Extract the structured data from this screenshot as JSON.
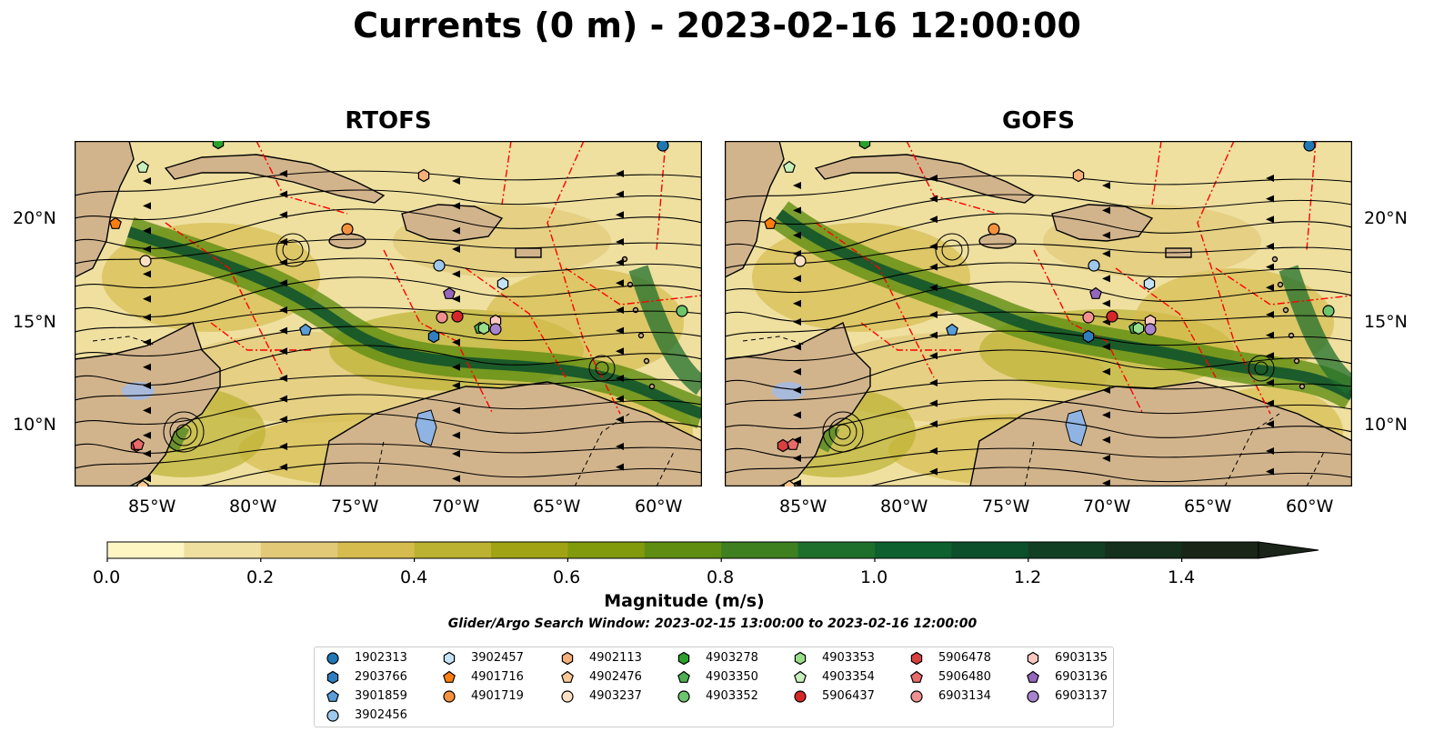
{
  "title": "Currents (0 m) - 2023-02-16 12:00:00",
  "panels": [
    {
      "title": "RTOFS"
    },
    {
      "title": "GOFS"
    }
  ],
  "axes": {
    "lon_ticks": [
      "85°W",
      "80°W",
      "75°W",
      "70°W",
      "65°W",
      "60°W"
    ],
    "lat_ticks": [
      "20°N",
      "15°N",
      "10°N"
    ]
  },
  "colorbar": {
    "label": "Magnitude (m/s)",
    "ticks": [
      "0.0",
      "0.2",
      "0.4",
      "0.6",
      "0.8",
      "1.0",
      "1.2",
      "1.4"
    ],
    "colors": [
      "#fdf6c3",
      "#efe0a0",
      "#e1c978",
      "#d6bc4e",
      "#bcb232",
      "#a0a414",
      "#819a0c",
      "#5f8d12",
      "#3e7f20",
      "#1f6f2c",
      "#0e602e",
      "#0b4f2b",
      "#113f24",
      "#15301d",
      "#182517",
      "#1a2418"
    ]
  },
  "search_window": "Glider/Argo Search Window: 2023-02-15 13:00:00 to 2023-02-16 12:00:00",
  "legend": {
    "columns": [
      [
        {
          "id": "1902313",
          "color": "#1f77b4",
          "shape": "circle"
        },
        {
          "id": "2903766",
          "color": "#2f7fc0",
          "shape": "hexagon"
        },
        {
          "id": "3901859",
          "color": "#5a9ed8",
          "shape": "pentagon"
        },
        {
          "id": "3902456",
          "color": "#9ec8ec",
          "shape": "circle"
        }
      ],
      [
        {
          "id": "3902457",
          "color": "#c6e2f7",
          "shape": "hexagon"
        },
        {
          "id": "4901716",
          "color": "#ff7f0e",
          "shape": "pentagon"
        },
        {
          "id": "4901719",
          "color": "#f5923e",
          "shape": "circle"
        }
      ],
      [
        {
          "id": "4902113",
          "color": "#f7b07a",
          "shape": "hexagon"
        },
        {
          "id": "4902476",
          "color": "#fcc894",
          "shape": "pentagon"
        },
        {
          "id": "4903237",
          "color": "#fde0c4",
          "shape": "circle"
        }
      ],
      [
        {
          "id": "4903278",
          "color": "#2ca02c",
          "shape": "hexagon"
        },
        {
          "id": "4903350",
          "color": "#4cb050",
          "shape": "pentagon"
        },
        {
          "id": "4903352",
          "color": "#6cc46c",
          "shape": "circle"
        }
      ],
      [
        {
          "id": "4903353",
          "color": "#98df8a",
          "shape": "hexagon"
        },
        {
          "id": "4903354",
          "color": "#c8f0bc",
          "shape": "pentagon"
        },
        {
          "id": "5906437",
          "color": "#d62728",
          "shape": "circle"
        }
      ],
      [
        {
          "id": "5906478",
          "color": "#d84040",
          "shape": "hexagon"
        },
        {
          "id": "5906480",
          "color": "#e86a6a",
          "shape": "pentagon"
        },
        {
          "id": "6903134",
          "color": "#f09090",
          "shape": "circle"
        }
      ],
      [
        {
          "id": "6903135",
          "color": "#fbc8c0",
          "shape": "hexagon"
        },
        {
          "id": "6903136",
          "color": "#9467bd",
          "shape": "pentagon"
        },
        {
          "id": "6903137",
          "color": "#a883d0",
          "shape": "circle"
        }
      ]
    ]
  },
  "colors": {
    "land": "#d2b48c",
    "lake": "#8fb4e3",
    "boundary": "#ff0000",
    "streamline": "#000000"
  }
}
